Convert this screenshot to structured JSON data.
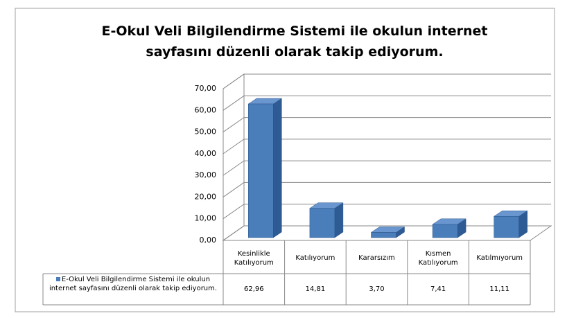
{
  "chart_data": {
    "type": "bar3d",
    "title": "E-Okul Veli Bilgilendirme Sistemi ile okulun internet sayfasını düzenli olarak takip ediyorum.",
    "categories": [
      "Kesinlikle Katılıyorum",
      "Katılıyorum",
      "Kararsızım",
      "Kısmen Katılıyorum",
      "Katılmıyorum"
    ],
    "series": [
      {
        "name": "E-Okul Veli Bilgilendirme Sistemi ile okulun internet sayfasını düzenli olarak takip ediyorum.",
        "color": "#4a7ebb",
        "values": [
          62.96,
          14.81,
          3.7,
          7.41,
          11.11
        ],
        "value_labels": [
          "62,96",
          "14,81",
          "3,70",
          "7,41",
          "11,11"
        ]
      }
    ],
    "ylim": [
      0,
      70
    ],
    "yticks": [
      {
        "value": 0,
        "label": "0,00"
      },
      {
        "value": 10,
        "label": "10,00"
      },
      {
        "value": 20,
        "label": "20,00"
      },
      {
        "value": 30,
        "label": "30,00"
      },
      {
        "value": 40,
        "label": "40,00"
      },
      {
        "value": 50,
        "label": "50,00"
      },
      {
        "value": 60,
        "label": "60,00"
      },
      {
        "value": 70,
        "label": "70,00"
      }
    ],
    "grid": true
  }
}
